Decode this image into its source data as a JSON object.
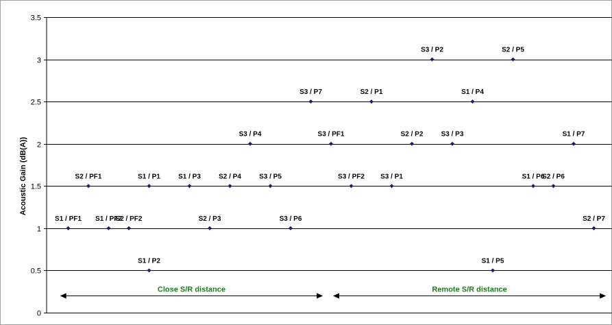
{
  "chart_data": {
    "type": "scatter",
    "ylabel": "Acoustic Gain (dB(A))",
    "ylim": [
      0,
      3.5
    ],
    "yticks": [
      "0",
      "0.5",
      "1",
      "1.5",
      "2",
      "2.5",
      "3",
      "3.5"
    ],
    "grid": true,
    "x_range": [
      0,
      27
    ],
    "points": [
      {
        "label": "S1 / PF1",
        "x": 1,
        "y": 1
      },
      {
        "label": "S2 / PF1",
        "x": 2,
        "y": 1.5
      },
      {
        "label": "S1 / PF2",
        "x": 3,
        "y": 1
      },
      {
        "label": "S2 / PF2",
        "x": 4,
        "y": 1
      },
      {
        "label": "S1 / P1",
        "x": 5,
        "y": 1.5
      },
      {
        "label": "S1 / P2",
        "x": 5,
        "y": 0.5
      },
      {
        "label": "S1 / P3",
        "x": 7,
        "y": 1.5
      },
      {
        "label": "S2 / P3",
        "x": 8,
        "y": 1
      },
      {
        "label": "S2 / P4",
        "x": 9,
        "y": 1.5
      },
      {
        "label": "S3 / P4",
        "x": 10,
        "y": 2
      },
      {
        "label": "S3 / P5",
        "x": 11,
        "y": 1.5
      },
      {
        "label": "S3 / P6",
        "x": 12,
        "y": 1
      },
      {
        "label": "S3 / P7",
        "x": 13,
        "y": 2.5
      },
      {
        "label": "S3 / PF1",
        "x": 14,
        "y": 2
      },
      {
        "label": "S3 / PF2",
        "x": 15,
        "y": 1.5
      },
      {
        "label": "S2 / P1",
        "x": 16,
        "y": 2.5
      },
      {
        "label": "S3 / P1",
        "x": 17,
        "y": 1.5
      },
      {
        "label": "S3 / P2",
        "x": 19,
        "y": 3
      },
      {
        "label": "S2 / P2",
        "x": 18,
        "y": 2
      },
      {
        "label": "S3 / P3",
        "x": 20,
        "y": 2
      },
      {
        "label": "S1 / P4",
        "x": 21,
        "y": 2.5
      },
      {
        "label": "S1 / P5",
        "x": 22,
        "y": 0.5
      },
      {
        "label": "S2 / P5",
        "x": 23,
        "y": 3
      },
      {
        "label": "S1 / P6",
        "x": 24,
        "y": 1.5
      },
      {
        "label": "S2 / P6",
        "x": 25,
        "y": 1.5
      },
      {
        "label": "S1 / P7",
        "x": 26,
        "y": 2
      },
      {
        "label": "S2 / P7",
        "x": 27,
        "y": 1
      }
    ],
    "annotations": [
      {
        "text": "Close S/R distance",
        "x_from": 0.6,
        "x_to": 13.6,
        "y": 0.2
      },
      {
        "text": "Remote S/R distance",
        "x_from": 14.1,
        "x_to": 27.6,
        "y": 0.2
      }
    ],
    "colors": {
      "marker": "#1a1a6e",
      "grid": "#000000",
      "annotation": "#1f7a1f"
    }
  }
}
